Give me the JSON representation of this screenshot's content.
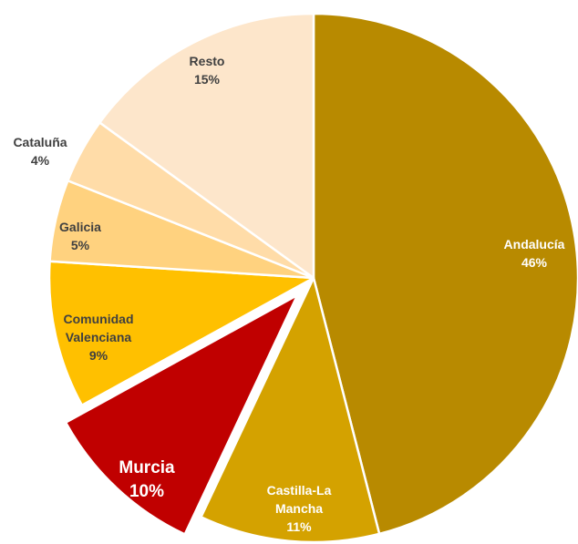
{
  "chart_data": {
    "type": "pie",
    "categories": [
      "Andalucía",
      "Castilla-La Mancha",
      "Murcia",
      "Comunidad Valenciana",
      "Galicia",
      "Cataluña",
      "Resto"
    ],
    "values": [
      46,
      11,
      10,
      9,
      5,
      4,
      15
    ],
    "value_labels": [
      "46%",
      "11%",
      "10%",
      "9%",
      "5%",
      "4%",
      "15%"
    ],
    "colors": [
      "#b88a00",
      "#d4a200",
      "#c00000",
      "#ffc000",
      "#ffd27f",
      "#ffdca8",
      "#fde6cb"
    ],
    "label_colors": [
      "#ffffff",
      "#ffffff",
      "#ffffff",
      "#404040",
      "#404040",
      "#404040",
      "#404040"
    ],
    "exploded": [
      "Murcia"
    ]
  }
}
